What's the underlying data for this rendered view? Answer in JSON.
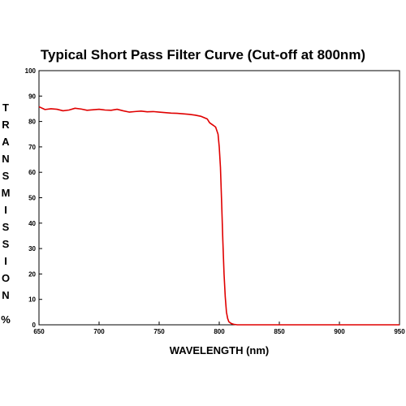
{
  "chart_data": {
    "type": "line",
    "title": "Typical Short Pass Filter Curve (Cut-off at 800nm)",
    "xlabel": "WAVELENGTH (nm)",
    "ylabel": "TRANSMISSION %",
    "ylabel_letters": [
      "T",
      "R",
      "A",
      "N",
      "S",
      "M",
      "I",
      "S",
      "S",
      "I",
      "O",
      "N"
    ],
    "ylabel_unit": "%",
    "xlim": [
      650,
      950
    ],
    "ylim": [
      0,
      100
    ],
    "x_ticks": [
      650,
      700,
      750,
      800,
      850,
      900,
      950
    ],
    "y_ticks": [
      0,
      10,
      20,
      30,
      40,
      50,
      60,
      70,
      80,
      90,
      100
    ],
    "grid": false,
    "line_color": "#e00000",
    "series": [
      {
        "x": [
          650,
          655,
          660,
          665,
          670,
          675,
          680,
          685,
          690,
          695,
          700,
          705,
          710,
          715,
          720,
          725,
          730,
          735,
          740,
          745,
          750,
          755,
          760,
          765,
          770,
          775,
          780,
          785,
          790,
          792,
          795,
          797,
          799,
          800,
          801,
          802,
          803,
          804,
          805,
          806,
          807,
          808,
          810,
          812,
          815,
          820,
          850,
          900,
          950
        ],
        "y": [
          85.8,
          84.7,
          85.0,
          84.8,
          84.2,
          84.5,
          85.2,
          84.9,
          84.4,
          84.6,
          84.8,
          84.5,
          84.4,
          84.8,
          84.2,
          83.7,
          83.9,
          84.1,
          83.8,
          83.9,
          83.7,
          83.5,
          83.3,
          83.2,
          83.0,
          82.8,
          82.5,
          82.0,
          81.0,
          79.5,
          78.5,
          77.8,
          75.0,
          70.0,
          62.0,
          48.0,
          33.0,
          20.0,
          11.0,
          5.0,
          2.5,
          1.2,
          0.5,
          0.2,
          0.0,
          0.0,
          0.0,
          0.0,
          0.0
        ]
      }
    ]
  }
}
